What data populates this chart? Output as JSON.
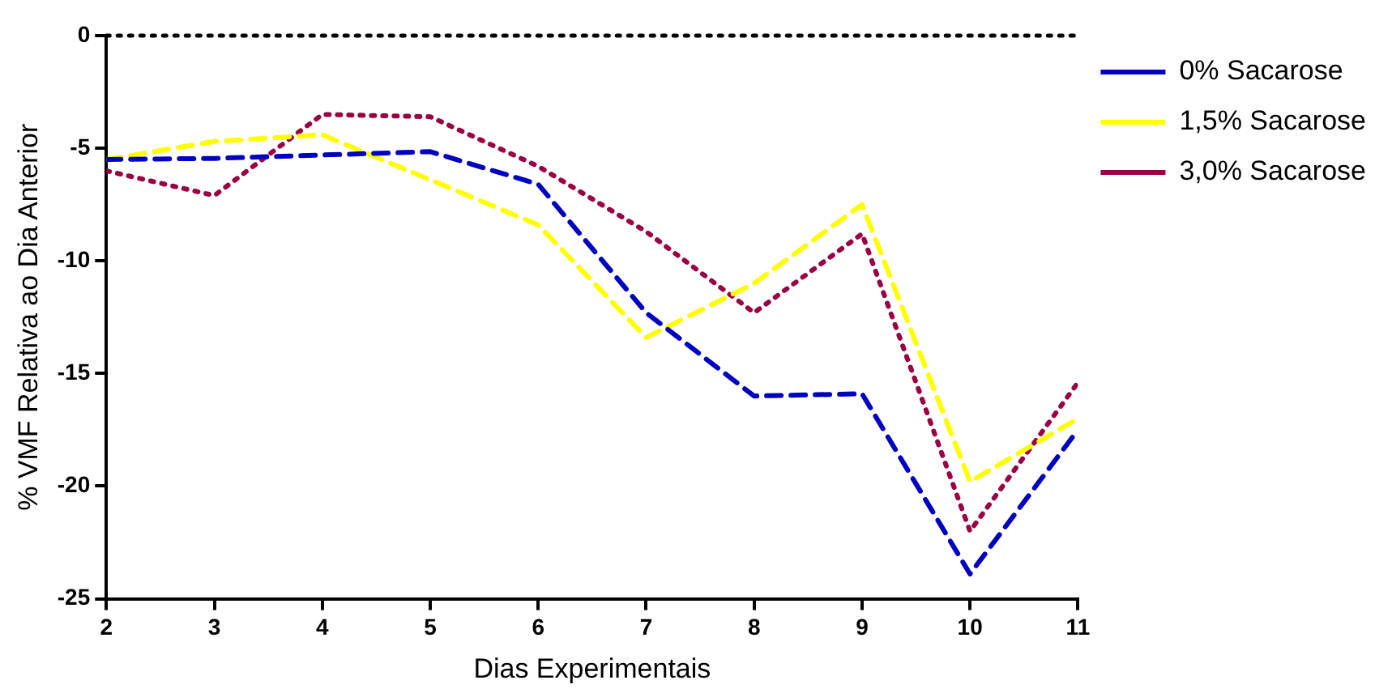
{
  "chart_data": {
    "type": "line",
    "xlabel": "Dias Experimentais",
    "ylabel": "% VMF Relativa ao Dia Anterior",
    "x": [
      2,
      3,
      4,
      5,
      6,
      7,
      8,
      9,
      10,
      11
    ],
    "series": [
      {
        "name": "0% Sacarose",
        "color": "#0000c0",
        "line_style": "dashed",
        "values": [
          -5.5,
          -5.45,
          -5.3,
          -5.15,
          -6.6,
          -12.3,
          -16,
          -15.9,
          -23.9,
          -17.5
        ]
      },
      {
        "name": "1,5% Sacarose",
        "color": "#ffff00",
        "line_style": "dashed",
        "values": [
          -5.5,
          -4.7,
          -4.4,
          -6.4,
          -8.4,
          -13.4,
          -11,
          -7.5,
          -19.8,
          -17
        ]
      },
      {
        "name": "3,0% Sacarose",
        "color": "#990044",
        "line_style": "dotted",
        "values": [
          -6,
          -7.1,
          -3.5,
          -3.6,
          -5.8,
          -8.7,
          -12.3,
          -8.8,
          -22,
          -15.4
        ]
      }
    ],
    "xlim": [
      2,
      11
    ],
    "xticks": [
      2,
      3,
      4,
      5,
      6,
      7,
      8,
      9,
      10,
      11
    ],
    "ylim": [
      -25,
      0
    ],
    "yticks": [
      -25,
      -20,
      -15,
      -10,
      -5,
      0
    ],
    "ref_lines": [
      {
        "axis": "y",
        "value": 0,
        "color": "#000000",
        "line_style": "dotted"
      }
    ],
    "grid": false,
    "legend": "top right",
    "marker": "none"
  }
}
